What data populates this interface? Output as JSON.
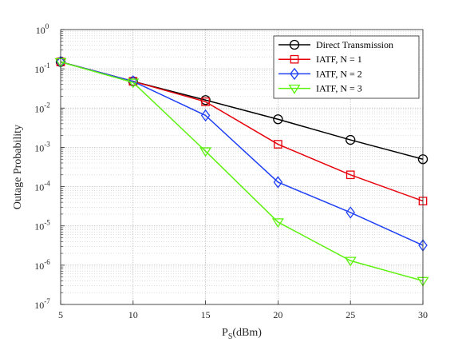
{
  "chart_data": {
    "type": "line",
    "xlabel": "P",
    "xlabel_sub": "S",
    "xlabel_unit": "(dBm)",
    "ylabel": "Outage Probability",
    "x": [
      5,
      10,
      15,
      20,
      25,
      30
    ],
    "xlim": [
      5,
      30
    ],
    "ylim": [
      1e-07,
      1
    ],
    "yscale": "log",
    "grid": true,
    "legend_position": "top-right",
    "x_ticks": [
      "5",
      "10",
      "15",
      "20",
      "25",
      "30"
    ],
    "y_ticks": [
      {
        "base": "10",
        "exp": "0",
        "value": 1
      },
      {
        "base": "10",
        "exp": "-1",
        "value": 0.1
      },
      {
        "base": "10",
        "exp": "-2",
        "value": 0.01
      },
      {
        "base": "10",
        "exp": "-3",
        "value": 0.001
      },
      {
        "base": "10",
        "exp": "-4",
        "value": 0.0001
      },
      {
        "base": "10",
        "exp": "-5",
        "value": 1e-05
      },
      {
        "base": "10",
        "exp": "-6",
        "value": 1e-06
      },
      {
        "base": "10",
        "exp": "-7",
        "value": 1e-07
      }
    ],
    "series": [
      {
        "name": "Direct Transmission",
        "color": "#000000",
        "marker": "circle",
        "values": [
          0.15,
          0.048,
          0.016,
          0.0052,
          0.00155,
          0.0005
        ]
      },
      {
        "name": "IATF, N = 1",
        "color": "#e8000b",
        "marker": "square",
        "values": [
          0.15,
          0.048,
          0.0145,
          0.0012,
          0.0002,
          4.3e-05
        ]
      },
      {
        "name": "IATF, N = 2",
        "color": "#1f3ff5",
        "marker": "diamond",
        "values": [
          0.15,
          0.048,
          0.0065,
          0.00013,
          2.2e-05,
          3.2e-06
        ]
      },
      {
        "name": "IATF, N = 3",
        "color": "#5df20f",
        "marker": "triangle-down",
        "values": [
          0.15,
          0.045,
          0.0008,
          1.25e-05,
          1.3e-06,
          4e-07
        ]
      }
    ]
  }
}
